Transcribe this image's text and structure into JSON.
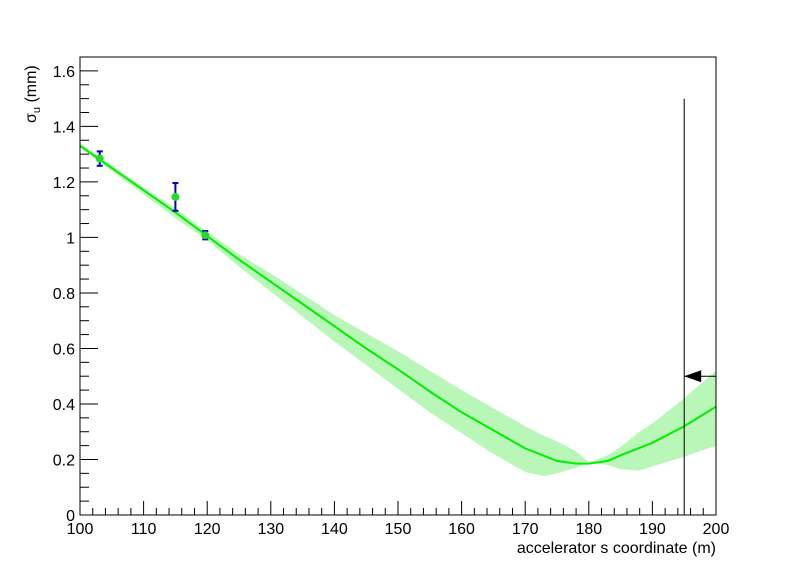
{
  "chart_data": {
    "type": "line",
    "title": "",
    "xlabel": "accelerator s coordinate (m)",
    "ylabel": "σ",
    "ylabel_subscript": "u",
    "ylabel_unit": "(mm)",
    "xlim": [
      100,
      200
    ],
    "ylim": [
      0,
      1.65
    ],
    "x_ticks": [
      100,
      110,
      120,
      130,
      140,
      150,
      160,
      170,
      180,
      190,
      200
    ],
    "x_tick_labels": [
      "100",
      "110",
      "120",
      "130",
      "140",
      "150",
      "160",
      "170",
      "180",
      "190",
      "200"
    ],
    "y_ticks": [
      0,
      0.2,
      0.4,
      0.6,
      0.8,
      1.0,
      1.2,
      1.4,
      1.6
    ],
    "y_tick_labels": [
      "0",
      "0.2",
      "0.4",
      "0.6",
      "0.8",
      "1",
      "1.2",
      "1.4",
      "1.6"
    ],
    "grid": false,
    "colors": {
      "fit": "#00ee00",
      "band": "#b8f7b8",
      "marker": "#22dd22",
      "errorbar": "#0000cc",
      "marker_line": "#000000"
    },
    "series": [
      {
        "kind": "measurements",
        "x": [
          103.1,
          115.0,
          119.7
        ],
        "y": [
          1.284,
          1.146,
          1.008
        ],
        "yerr": [
          0.026,
          0.05,
          0.015
        ]
      },
      {
        "kind": "fit",
        "x": [
          100,
          105,
          110,
          115,
          120,
          125,
          130,
          135,
          140,
          145,
          150,
          155,
          160,
          165,
          170,
          175,
          178,
          180,
          183,
          185,
          190,
          195,
          200
        ],
        "y": [
          1.33,
          1.25,
          1.17,
          1.09,
          1.005,
          0.92,
          0.84,
          0.76,
          0.68,
          0.6,
          0.525,
          0.445,
          0.37,
          0.305,
          0.24,
          0.195,
          0.185,
          0.185,
          0.195,
          0.215,
          0.26,
          0.32,
          0.39
        ]
      },
      {
        "kind": "band",
        "x": [
          100,
          105,
          110,
          115,
          120,
          125,
          130,
          135,
          140,
          145,
          150,
          155,
          160,
          165,
          170,
          173,
          175,
          178,
          180,
          183,
          185,
          188,
          190,
          195,
          200
        ],
        "lower": [
          1.325,
          1.24,
          1.155,
          1.07,
          0.99,
          0.895,
          0.805,
          0.715,
          0.625,
          0.54,
          0.455,
          0.37,
          0.295,
          0.22,
          0.155,
          0.14,
          0.15,
          0.17,
          0.19,
          0.18,
          0.165,
          0.16,
          0.175,
          0.21,
          0.25
        ],
        "upper": [
          1.34,
          1.26,
          1.18,
          1.105,
          1.02,
          0.94,
          0.87,
          0.795,
          0.72,
          0.655,
          0.59,
          0.52,
          0.45,
          0.385,
          0.32,
          0.285,
          0.265,
          0.23,
          0.19,
          0.215,
          0.245,
          0.3,
          0.33,
          0.42,
          0.52
        ]
      }
    ],
    "annotations": {
      "vertical_line_x": 195,
      "vertical_line_top_y": 1.5,
      "arrow_y": 0.5
    }
  }
}
